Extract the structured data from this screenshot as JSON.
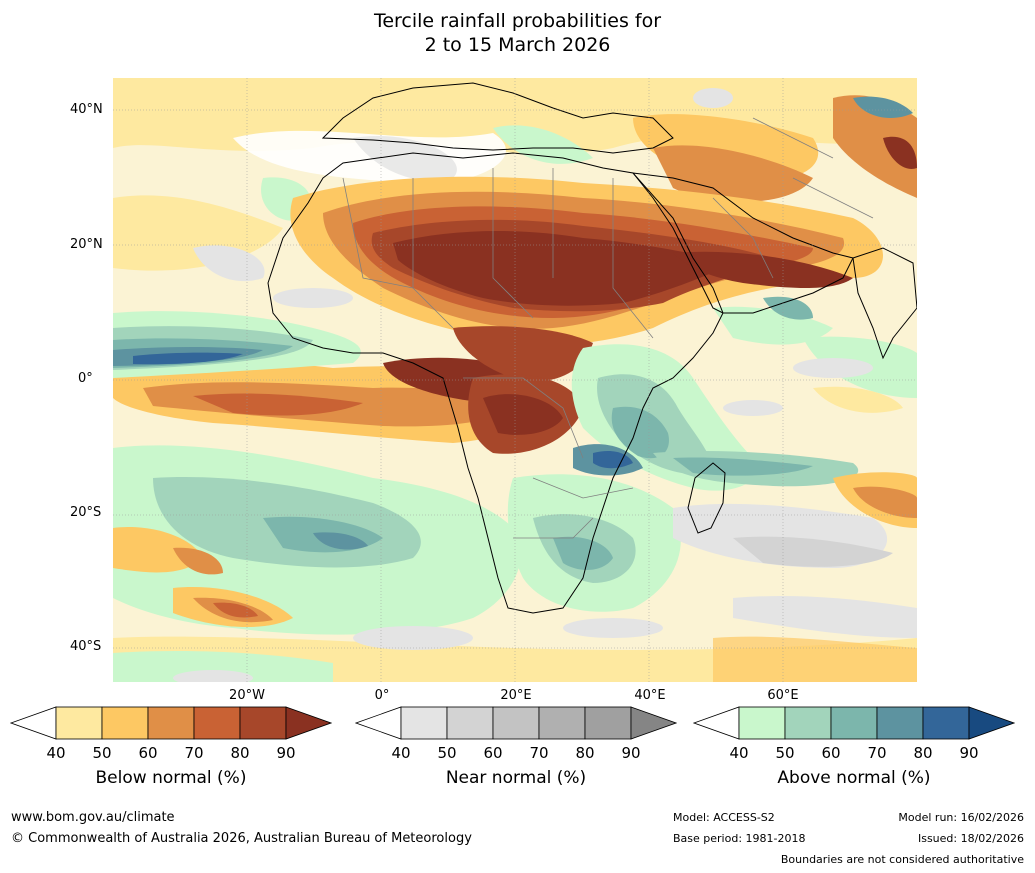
{
  "title": {
    "line1": "Tercile rainfall probabilities for",
    "line2": "2 to 15 March 2026"
  },
  "map": {
    "lat_labels": [
      "40°N",
      "20°N",
      "0°",
      "20°S",
      "40°S"
    ],
    "lon_labels": [
      "20°W",
      "0°",
      "20°E",
      "40°E",
      "60°E"
    ],
    "extent": {
      "lon_min": -40,
      "lon_max": 80,
      "lat_min": -45,
      "lat_max": 45
    }
  },
  "colorbars": [
    {
      "label": "Below normal (%)",
      "ticks": [
        "40",
        "50",
        "60",
        "70",
        "80",
        "90"
      ],
      "colors": [
        "#ffffff",
        "#fee9a0",
        "#fdc863",
        "#e08f47",
        "#c96234",
        "#a7472a",
        "#8a3121"
      ]
    },
    {
      "label": "Near normal (%)",
      "ticks": [
        "40",
        "50",
        "60",
        "70",
        "80",
        "90"
      ],
      "colors": [
        "#ffffff",
        "#e4e4e4",
        "#d3d3d3",
        "#c3c3c3",
        "#b0b0b0",
        "#a0a0a0",
        "#858585"
      ]
    },
    {
      "label": "Above normal (%)",
      "ticks": [
        "40",
        "50",
        "60",
        "70",
        "80",
        "90"
      ],
      "colors": [
        "#ffffff",
        "#c9f7cc",
        "#a2d4bb",
        "#7cb6ac",
        "#5d93a0",
        "#336699",
        "#184a80"
      ]
    }
  ],
  "footer": {
    "website": "www.bom.gov.au/climate",
    "copyright": "© Commonwealth of Australia 2026, Australian Bureau of Meteorology",
    "model": "Model: ACCESS-S2",
    "base_period": "Base period: 1981-2018",
    "model_run": "Model run: 16/02/2026",
    "issued": "Issued: 18/02/2026",
    "disclaimer": "Boundaries are not considered authoritative"
  }
}
